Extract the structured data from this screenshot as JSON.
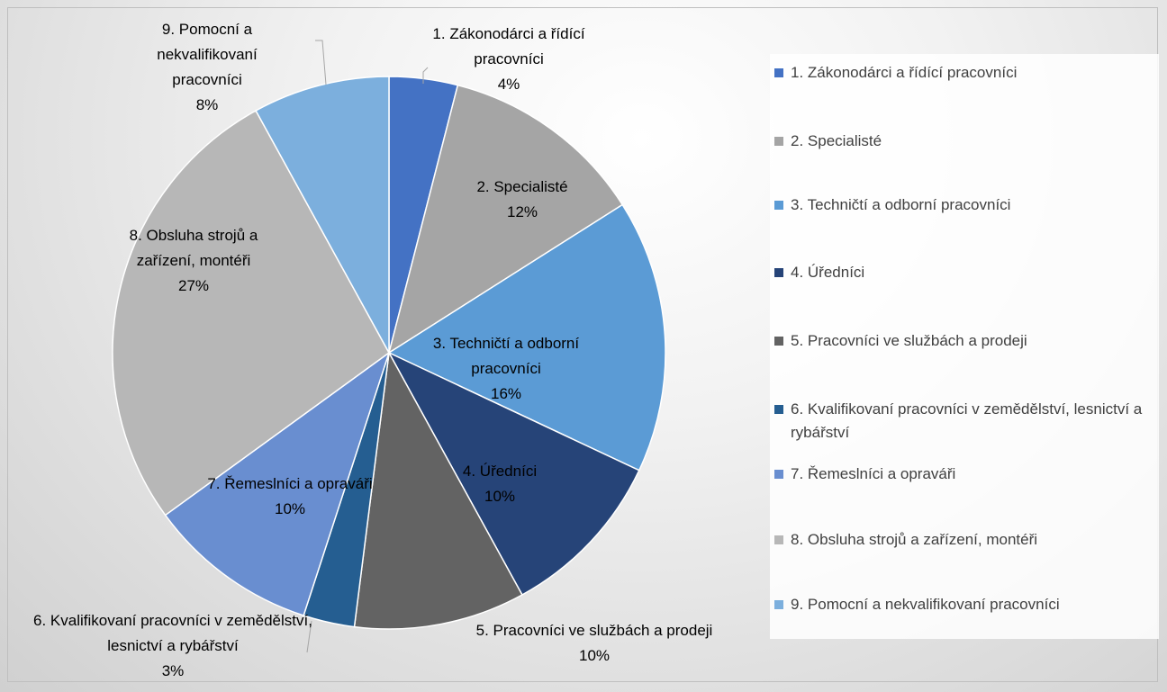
{
  "chart_data": {
    "type": "pie",
    "categories": [
      "1. Zákonodárci a řídící pracovníci",
      "2. Specialisté",
      "3. Techničtí a odborní pracovníci",
      "4. Úředníci",
      "5. Pracovníci ve službách a prodeji",
      "6. Kvalifikovaní pracovníci v zemědělství, lesnictví a rybářství",
      "7. Řemeslníci a opraváři",
      "8. Obsluha strojů a zařízení, montéři",
      "9. Pomocní a nekvalifikovaní pracovníci"
    ],
    "values": [
      4,
      12,
      16,
      10,
      10,
      3,
      10,
      27,
      8
    ],
    "value_labels": [
      "4%",
      "12%",
      "16%",
      "10%",
      "10%",
      "3%",
      "10%",
      "27%",
      "8%"
    ],
    "colors": [
      "#4472c4",
      "#a5a5a5",
      "#5b9bd5",
      "#264478",
      "#636363",
      "#255e91",
      "#698ed0",
      "#b7b7b7",
      "#7cafdd"
    ],
    "legend": "right"
  }
}
